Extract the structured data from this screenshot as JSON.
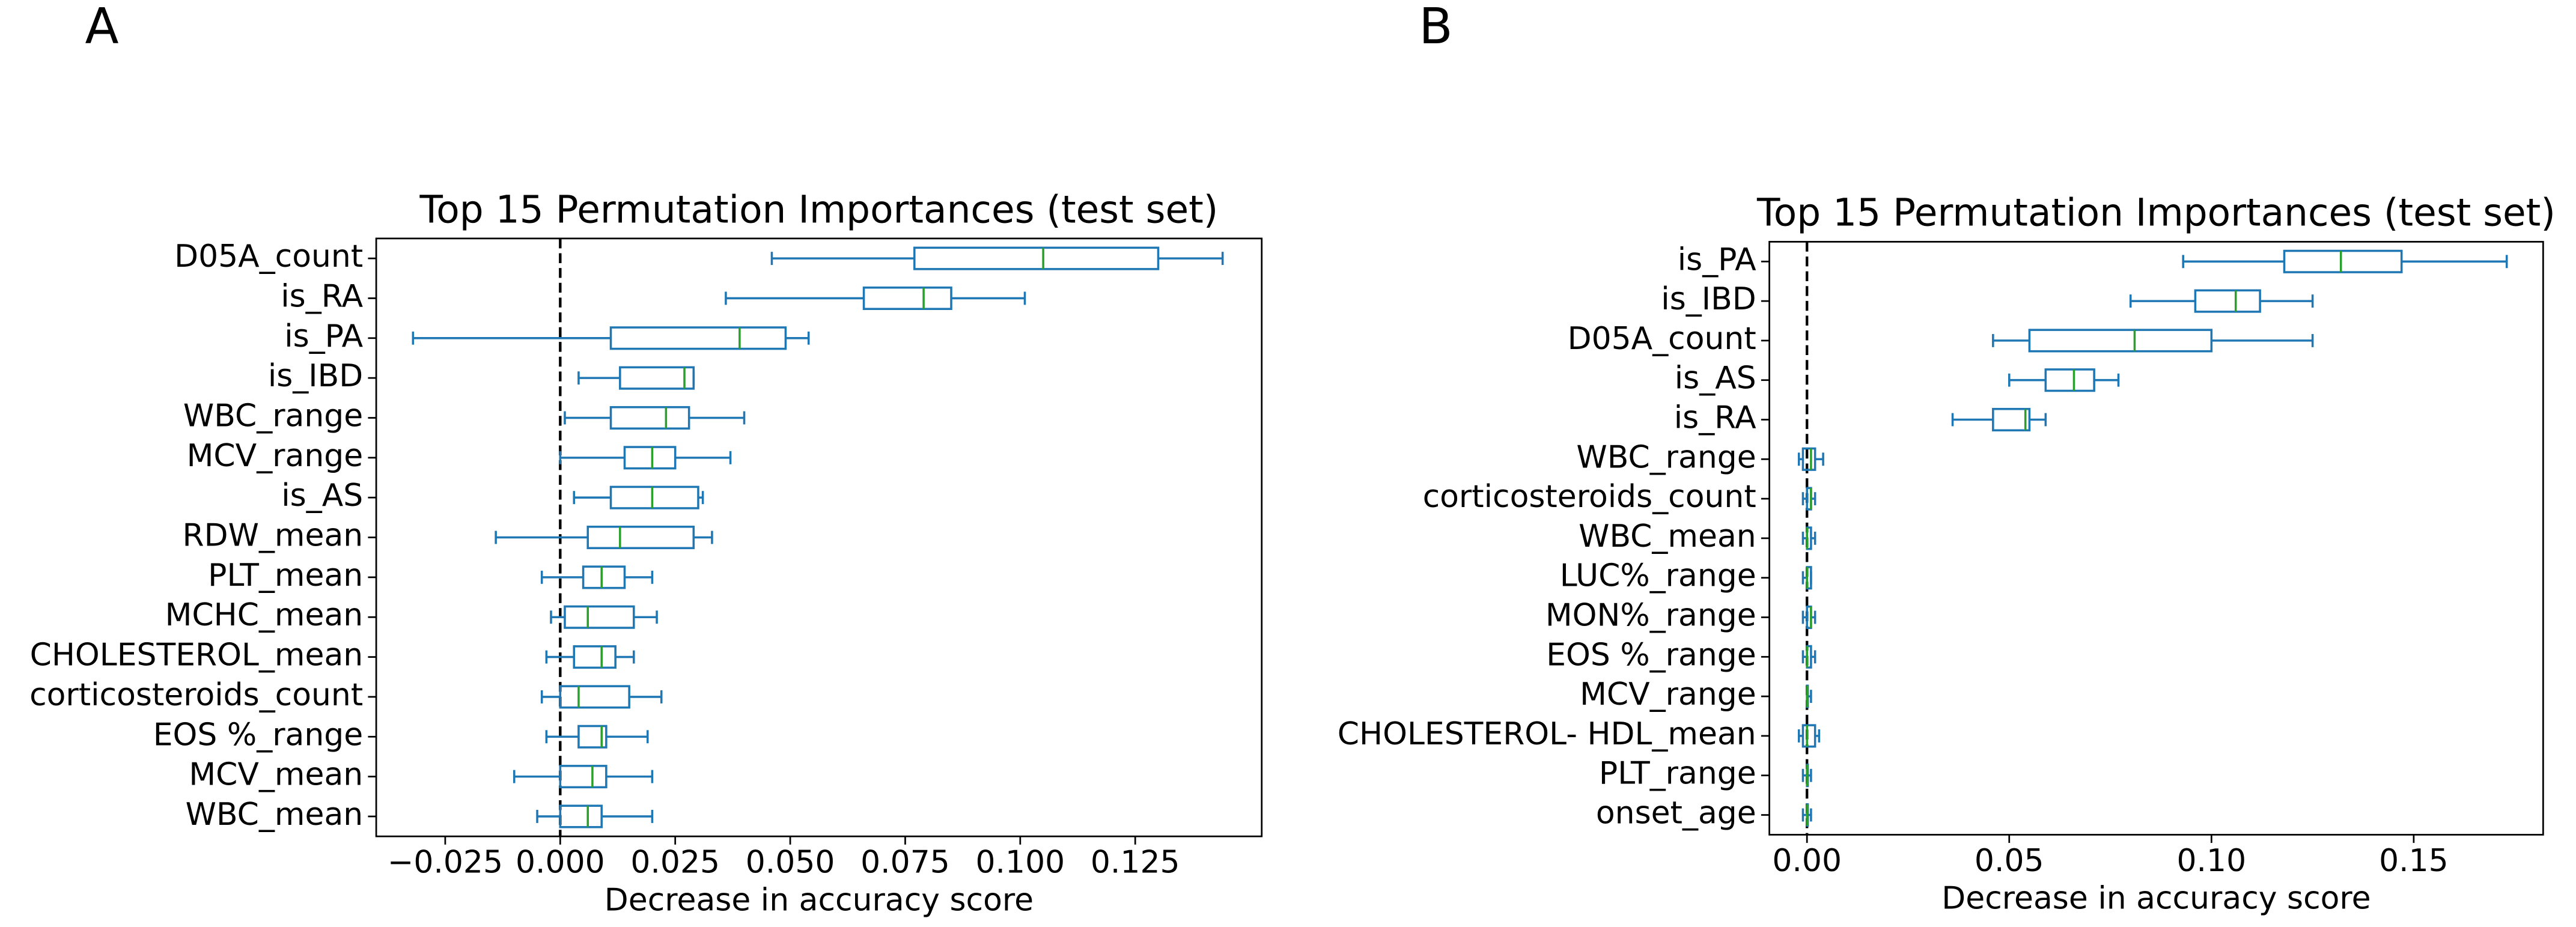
{
  "chart_data": [
    {
      "type": "boxplot",
      "panel_label": "A",
      "title": "Top 15 Permutation Importances (test set)",
      "xlabel": "Decrease in accuracy score",
      "categories": [
        "D05A_count",
        "is_RA",
        "is_PA",
        "is_IBD",
        "WBC_range",
        "MCV_range",
        "is_AS",
        "RDW_mean",
        "PLT_mean",
        "MCHC_mean",
        "CHOLESTEROL_mean",
        "corticosteroids_count",
        "EOS %_range",
        "MCV_mean",
        "WBC_mean"
      ],
      "whislo": [
        0.046,
        0.036,
        -0.032,
        0.004,
        0.001,
        0.0,
        0.003,
        -0.014,
        -0.004,
        -0.002,
        -0.003,
        -0.004,
        -0.003,
        -0.01,
        -0.005
      ],
      "q1": [
        0.077,
        0.066,
        0.011,
        0.013,
        0.011,
        0.014,
        0.011,
        0.006,
        0.005,
        0.001,
        0.003,
        0.0,
        0.004,
        0.0,
        0.0
      ],
      "med": [
        0.105,
        0.079,
        0.039,
        0.027,
        0.023,
        0.02,
        0.02,
        0.013,
        0.009,
        0.006,
        0.009,
        0.004,
        0.009,
        0.007,
        0.006
      ],
      "q3": [
        0.13,
        0.085,
        0.049,
        0.029,
        0.028,
        0.025,
        0.03,
        0.029,
        0.014,
        0.016,
        0.012,
        0.015,
        0.01,
        0.01,
        0.009
      ],
      "whishi": [
        0.144,
        0.101,
        0.054,
        0.029,
        0.04,
        0.037,
        0.031,
        0.033,
        0.02,
        0.021,
        0.016,
        0.022,
        0.019,
        0.02,
        0.02
      ],
      "xlim": [
        -0.04,
        0.1525
      ],
      "xticks": [
        {
          "value": -0.025,
          "label": "−0.025"
        },
        {
          "value": 0,
          "label": "0.000"
        },
        {
          "value": 0.025,
          "label": "0.025"
        },
        {
          "value": 0.05,
          "label": "0.050"
        },
        {
          "value": 0.075,
          "label": "0.075"
        },
        {
          "value": 0.1,
          "label": "0.100"
        },
        {
          "value": 0.125,
          "label": "0.125"
        }
      ],
      "vline": 0,
      "box_color": "#1f77b4",
      "median_color": "#2ca02c"
    },
    {
      "type": "boxplot",
      "panel_label": "B",
      "title": "Top 15 Permutation Importances (test set)",
      "xlabel": "Decrease in accuracy score",
      "categories": [
        "is_PA",
        "is_IBD",
        "D05A_count",
        "is_AS",
        "is_RA",
        "WBC_range",
        "corticosteroids_count",
        "WBC_mean",
        "LUC%_range",
        "MON%_range",
        "EOS %_range",
        "MCV_range",
        "CHOLESTEROL- HDL_mean",
        "PLT_range",
        "onset_age"
      ],
      "whislo": [
        0.093,
        0.08,
        0.046,
        0.05,
        0.036,
        -0.002,
        -0.001,
        -0.001,
        -0.001,
        -0.001,
        -0.001,
        0.0,
        -0.002,
        -0.001,
        -0.001
      ],
      "q1": [
        0.118,
        0.096,
        0.055,
        0.059,
        0.046,
        -0.001,
        0.0,
        0.0,
        0.0,
        0.0,
        0.0,
        0.0,
        -0.001,
        0.0,
        0.0
      ],
      "med": [
        0.132,
        0.106,
        0.081,
        0.066,
        0.054,
        0.001,
        0.001,
        0.0,
        0.0,
        0.001,
        0.0,
        0.0,
        0.0,
        0.0,
        0.0
      ],
      "q3": [
        0.147,
        0.112,
        0.1,
        0.071,
        0.055,
        0.002,
        0.001,
        0.001,
        0.001,
        0.001,
        0.001,
        0.0,
        0.002,
        0.0,
        0.0
      ],
      "whishi": [
        0.173,
        0.125,
        0.125,
        0.077,
        0.059,
        0.004,
        0.002,
        0.002,
        0.001,
        0.002,
        0.002,
        0.001,
        0.003,
        0.001,
        0.001
      ],
      "xlim": [
        -0.0093,
        0.182
      ],
      "xticks": [
        {
          "value": 0,
          "label": "0.00"
        },
        {
          "value": 0.05,
          "label": "0.05"
        },
        {
          "value": 0.1,
          "label": "0.10"
        },
        {
          "value": 0.15,
          "label": "0.15"
        }
      ],
      "vline": 0,
      "box_color": "#1f77b4",
      "median_color": "#2ca02c"
    }
  ]
}
